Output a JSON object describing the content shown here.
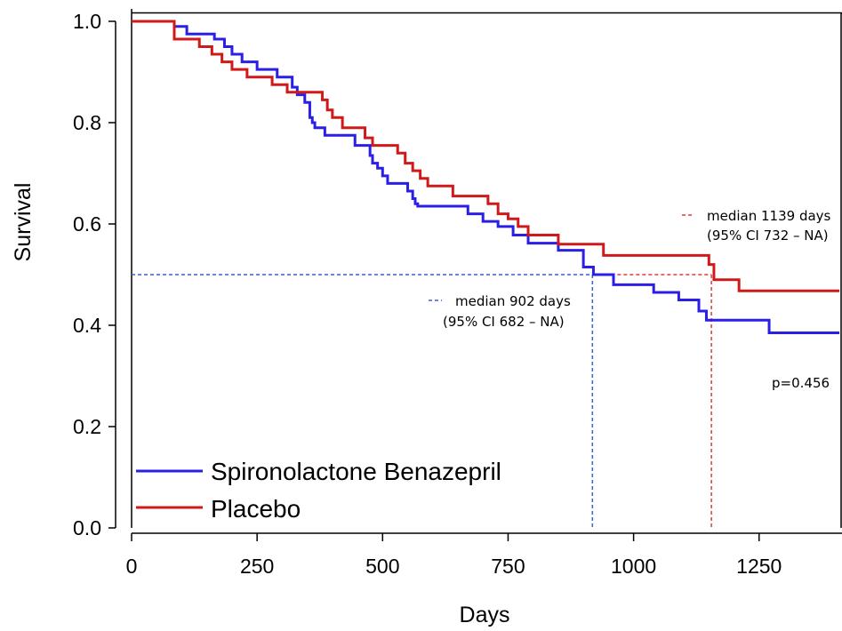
{
  "chart_data": {
    "type": "line",
    "subtype": "kaplan-meier",
    "title": "",
    "xlabel": "Days",
    "ylabel": "Survival",
    "xlim": [
      0,
      1410
    ],
    "ylim": [
      0,
      1.0
    ],
    "xticks": [
      0,
      250,
      500,
      750,
      1000,
      1250
    ],
    "yticks": [
      0.0,
      0.2,
      0.4,
      0.6,
      0.8,
      1.0
    ],
    "xtick_labels": [
      "0",
      "250",
      "500",
      "750",
      "1000",
      "1250"
    ],
    "ytick_labels": [
      "0.0",
      "0.2",
      "0.4",
      "0.6",
      "0.8",
      "1.0"
    ],
    "grid": false,
    "legend_position": "bottom-left",
    "series": [
      {
        "name": "Spironolactone Benazepril",
        "color": "#2b1fe6",
        "x": [
          0,
          85,
          110,
          165,
          185,
          200,
          220,
          250,
          290,
          320,
          330,
          345,
          355,
          360,
          365,
          385,
          445,
          475,
          480,
          490,
          500,
          510,
          550,
          560,
          565,
          570,
          580,
          670,
          700,
          730,
          760,
          790,
          850,
          900,
          920,
          960,
          1040,
          1090,
          1130,
          1145,
          1270,
          1410
        ],
        "y": [
          1.0,
          0.99,
          0.975,
          0.965,
          0.95,
          0.935,
          0.92,
          0.905,
          0.89,
          0.87,
          0.855,
          0.84,
          0.81,
          0.8,
          0.79,
          0.775,
          0.755,
          0.735,
          0.72,
          0.71,
          0.695,
          0.68,
          0.665,
          0.65,
          0.64,
          0.635,
          0.635,
          0.62,
          0.605,
          0.595,
          0.578,
          0.562,
          0.548,
          0.515,
          0.5,
          0.48,
          0.465,
          0.45,
          0.428,
          0.41,
          0.385,
          0.385
        ]
      },
      {
        "name": "Placebo",
        "color": "#d01a1a",
        "x": [
          0,
          85,
          135,
          160,
          180,
          200,
          230,
          280,
          310,
          340,
          380,
          390,
          400,
          420,
          465,
          480,
          500,
          530,
          545,
          560,
          575,
          590,
          620,
          640,
          690,
          710,
          730,
          750,
          770,
          790,
          850,
          890,
          940,
          1100,
          1150,
          1160,
          1210,
          1410
        ],
        "y": [
          1.0,
          0.965,
          0.95,
          0.935,
          0.92,
          0.905,
          0.89,
          0.875,
          0.86,
          0.86,
          0.845,
          0.825,
          0.81,
          0.79,
          0.77,
          0.755,
          0.755,
          0.74,
          0.72,
          0.705,
          0.69,
          0.675,
          0.675,
          0.655,
          0.655,
          0.64,
          0.62,
          0.61,
          0.595,
          0.578,
          0.56,
          0.56,
          0.538,
          0.538,
          0.52,
          0.49,
          0.468,
          0.468
        ]
      }
    ],
    "medians": [
      {
        "series": "Spironolactone Benazepril",
        "x": 918,
        "y": 0.5,
        "color": "#3a5fd9",
        "label_line1": "median 902 days",
        "label_line2": "(95% CI 682 – NA)"
      },
      {
        "series": "Placebo",
        "x": 1155,
        "y": 0.5,
        "color": "#e03a3a",
        "label_line1": "median 1139 days",
        "label_line2": "(95% CI 732 – NA)"
      }
    ],
    "pvalue_label": "p=0.456"
  }
}
